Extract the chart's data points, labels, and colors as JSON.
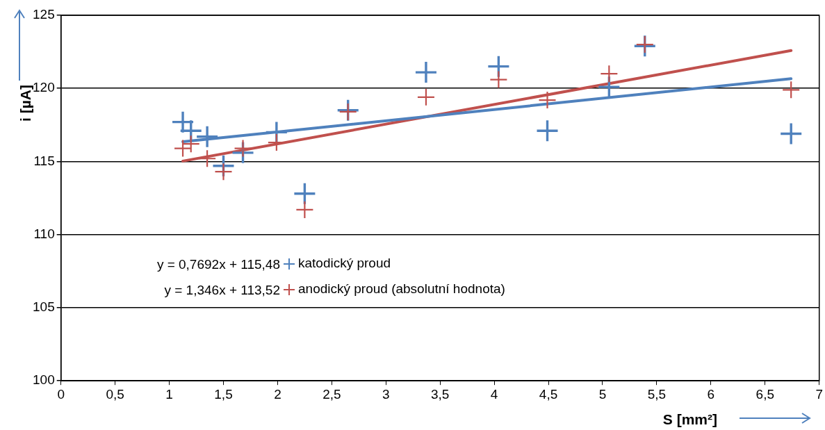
{
  "chart_data": {
    "type": "scatter",
    "xlabel": "S [mm²]",
    "ylabel": "i [µA]",
    "xlim": [
      0,
      7
    ],
    "ylim": [
      100,
      125
    ],
    "xticks": [
      0,
      {
        "value": 0.5,
        "label": "0,5"
      },
      1,
      {
        "value": 1.5,
        "label": "1,5"
      },
      2,
      {
        "value": 2.5,
        "label": "2,5"
      },
      3,
      {
        "value": 3.5,
        "label": "3,5"
      },
      4,
      {
        "value": 4.5,
        "label": "4,5"
      },
      5,
      {
        "value": 5.5,
        "label": "5,5"
      },
      6,
      {
        "value": 6.5,
        "label": "6,5"
      },
      7
    ],
    "yticks": [
      100,
      105,
      110,
      115,
      120,
      125
    ],
    "grid": "y",
    "legend": "bottom",
    "marker": "cross",
    "annotations": [
      "y = 0,7692x + 115,48",
      "y = 1,346x + 113,52"
    ],
    "series": [
      {
        "name": "katodický proud",
        "color": "#4f81bd",
        "x": [
          1.125,
          1.2,
          1.35,
          1.5,
          1.68,
          1.99,
          2.25,
          2.65,
          3.37,
          4.04,
          4.49,
          5.06,
          5.39,
          6.74
        ],
        "values": [
          117.7,
          117.1,
          116.7,
          114.7,
          115.6,
          117.0,
          112.8,
          118.5,
          121.1,
          121.5,
          117.1,
          120.1,
          122.9,
          116.9
        ]
      },
      {
        "name": "anodický proud (absolutní hodnota)",
        "color": "#c0504d",
        "x": [
          1.125,
          1.2,
          1.35,
          1.5,
          1.68,
          1.99,
          2.25,
          2.65,
          3.37,
          4.04,
          4.49,
          5.06,
          5.39,
          6.74
        ],
        "values": [
          115.9,
          116.2,
          115.2,
          114.3,
          115.9,
          116.3,
          111.7,
          118.4,
          119.4,
          120.6,
          119.2,
          121.0,
          123.0,
          119.9
        ]
      },
      {
        "type": "line",
        "color": "#4f81bd",
        "marker": "none",
        "line_style": "solid",
        "x": [
          1.125,
          6.74
        ],
        "values": [
          116.35,
          120.66
        ]
      },
      {
        "type": "line",
        "color": "#c0504d",
        "marker": "none",
        "line_style": "solid",
        "x": [
          1.125,
          6.74
        ],
        "values": [
          115.03,
          122.59
        ]
      }
    ]
  }
}
